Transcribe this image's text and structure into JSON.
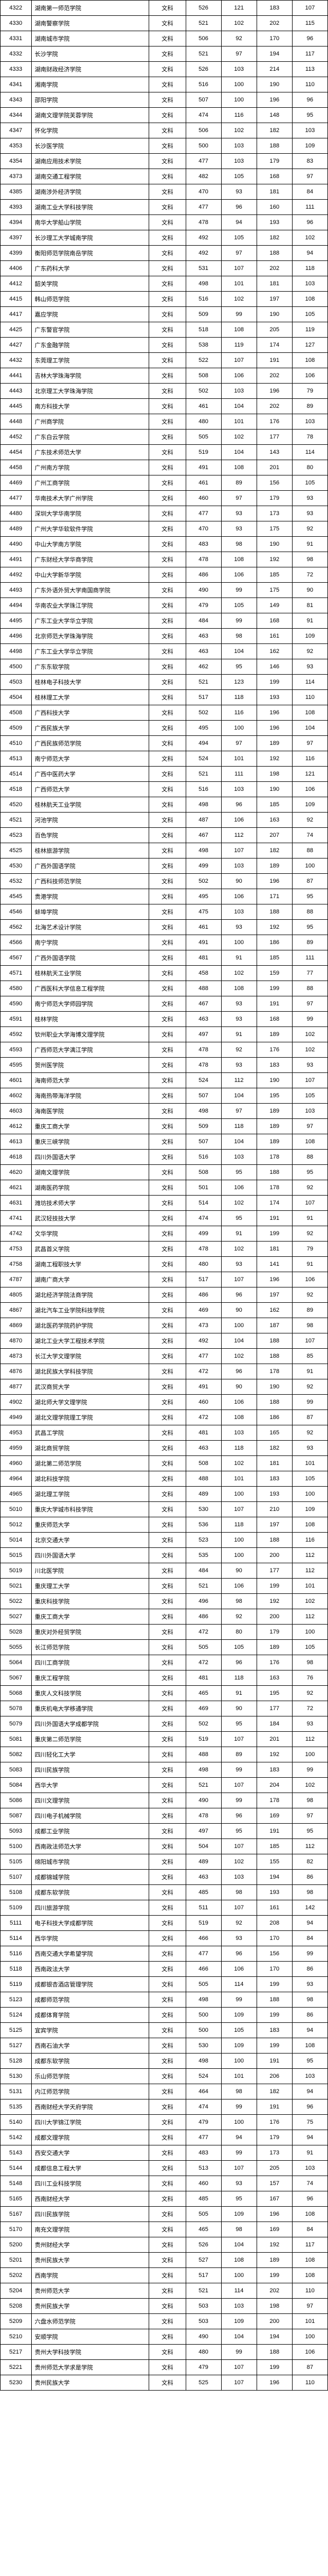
{
  "rows": [
    [
      "4322",
      "湖南第一师范学院",
      "文科",
      526,
      121,
      183,
      107
    ],
    [
      "4330",
      "湖南警察学院",
      "文科",
      521,
      102,
      202,
      115
    ],
    [
      "4331",
      "湖南城市学院",
      "文科",
      506,
      92,
      170,
      96
    ],
    [
      "4332",
      "长沙学院",
      "文科",
      521,
      97,
      194,
      117
    ],
    [
      "4333",
      "湖南财政经济学院",
      "文科",
      526,
      103,
      214,
      113
    ],
    [
      "4341",
      "湘南学院",
      "文科",
      516,
      100,
      190,
      110
    ],
    [
      "4343",
      "邵阳学院",
      "文科",
      507,
      100,
      196,
      96
    ],
    [
      "4344",
      "湖南文理学院芙蓉学院",
      "文科",
      474,
      116,
      148,
      95
    ],
    [
      "4347",
      "怀化学院",
      "文科",
      506,
      102,
      182,
      103
    ],
    [
      "4353",
      "长沙医学院",
      "文科",
      500,
      103,
      188,
      109
    ],
    [
      "4354",
      "湖南应用技术学院",
      "文科",
      477,
      103,
      179,
      83
    ],
    [
      "4373",
      "湖南交通工程学院",
      "文科",
      482,
      105,
      168,
      97
    ],
    [
      "4385",
      "湖南涉外经济学院",
      "文科",
      470,
      93,
      181,
      84
    ],
    [
      "4393",
      "湖南工业大学科技学院",
      "文科",
      477,
      96,
      160,
      111
    ],
    [
      "4394",
      "南华大学船山学院",
      "文科",
      478,
      94,
      193,
      96
    ],
    [
      "4397",
      "长沙理工大学城南学院",
      "文科",
      492,
      105,
      182,
      102
    ],
    [
      "4399",
      "衡阳师范学院南岳学院",
      "文科",
      492,
      97,
      188,
      94
    ],
    [
      "4406",
      "广东药科大学",
      "文科",
      531,
      107,
      202,
      118
    ],
    [
      "4412",
      "韶关学院",
      "文科",
      498,
      101,
      181,
      103
    ],
    [
      "4415",
      "韩山师范学院",
      "文科",
      516,
      102,
      197,
      108
    ],
    [
      "4417",
      "嘉应学院",
      "文科",
      509,
      99,
      190,
      105
    ],
    [
      "4425",
      "广东警官学院",
      "文科",
      518,
      108,
      205,
      119
    ],
    [
      "4427",
      "广东金融学院",
      "文科",
      538,
      119,
      174,
      127
    ],
    [
      "4432",
      "东莞理工学院",
      "文科",
      522,
      107,
      191,
      108
    ],
    [
      "4441",
      "吉林大学珠海学院",
      "文科",
      508,
      106,
      202,
      106
    ],
    [
      "4443",
      "北京理工大学珠海学院",
      "文科",
      502,
      103,
      196,
      79
    ],
    [
      "4445",
      "南方科技大学",
      "文科",
      461,
      104,
      202,
      89
    ],
    [
      "4448",
      "广州商学院",
      "文科",
      480,
      101,
      176,
      103
    ],
    [
      "4452",
      "广东白云学院",
      "文科",
      505,
      102,
      177,
      78
    ],
    [
      "4454",
      "广东技术师范大学",
      "文科",
      519,
      104,
      143,
      114
    ],
    [
      "4458",
      "广州南方学院",
      "文科",
      491,
      108,
      201,
      80
    ],
    [
      "4469",
      "广州工商学院",
      "文科",
      461,
      89,
      156,
      105
    ],
    [
      "4477",
      "华南技术大学广州学院",
      "文科",
      460,
      97,
      179,
      93
    ],
    [
      "4480",
      "深圳大学华南学院",
      "文科",
      477,
      93,
      173,
      93
    ],
    [
      "4489",
      "广州大学华软软件学院",
      "文科",
      470,
      93,
      175,
      92
    ],
    [
      "4490",
      "中山大学南方学院",
      "文科",
      483,
      98,
      190,
      91
    ],
    [
      "4491",
      "广东财经大学华商学院",
      "文科",
      478,
      108,
      192,
      98
    ],
    [
      "4492",
      "中山大学新华学院",
      "文科",
      486,
      106,
      185,
      72
    ],
    [
      "4493",
      "广东外语外贸大学南国商学院",
      "文科",
      490,
      99,
      175,
      90
    ],
    [
      "4494",
      "华南农业大学珠江学院",
      "文科",
      479,
      105,
      149,
      81
    ],
    [
      "4495",
      "广东工业大学华立学院",
      "文科",
      484,
      99,
      168,
      91
    ],
    [
      "4496",
      "北京师范大学珠海学院",
      "文科",
      463,
      98,
      161,
      109
    ],
    [
      "4498",
      "广东工业大学华立学院",
      "文科",
      463,
      104,
      162,
      92
    ],
    [
      "4500",
      "广东东软学院",
      "文科",
      462,
      95,
      146,
      93
    ],
    [
      "4503",
      "桂林电子科技大学",
      "文科",
      521,
      123,
      199,
      114
    ],
    [
      "4504",
      "桂林理工大学",
      "文科",
      517,
      118,
      193,
      110
    ],
    [
      "4508",
      "广西科技大学",
      "文科",
      502,
      116,
      196,
      108
    ],
    [
      "4509",
      "广西民族大学",
      "文科",
      495,
      100,
      196,
      104
    ],
    [
      "4510",
      "广西民族师范学院",
      "文科",
      494,
      97,
      189,
      97
    ],
    [
      "4513",
      "南宁师范大学",
      "文科",
      524,
      101,
      192,
      116
    ],
    [
      "4514",
      "广西中医药大学",
      "文科",
      521,
      111,
      198,
      121
    ],
    [
      "4518",
      "广西师范大学",
      "文科",
      516,
      103,
      190,
      106
    ],
    [
      "4520",
      "桂林航天工业学院",
      "文科",
      498,
      96,
      185,
      109
    ],
    [
      "4521",
      "河池学院",
      "文科",
      487,
      106,
      163,
      92
    ],
    [
      "4523",
      "百色学院",
      "文科",
      467,
      112,
      207,
      74
    ],
    [
      "4525",
      "桂林旅游学院",
      "文科",
      498,
      107,
      182,
      88
    ],
    [
      "4530",
      "广西外国语学院",
      "文科",
      499,
      103,
      189,
      100
    ],
    [
      "4532",
      "广西科技师范学院",
      "文科",
      502,
      90,
      196,
      87
    ],
    [
      "4545",
      "贵港学院",
      "文科",
      495,
      106,
      171,
      95
    ],
    [
      "4546",
      "蚌埠学院",
      "文科",
      475,
      103,
      188,
      88
    ],
    [
      "4562",
      "北海艺术设计学院",
      "文科",
      461,
      93,
      192,
      95
    ],
    [
      "4566",
      "南宁学院",
      "文科",
      491,
      100,
      186,
      89
    ],
    [
      "4567",
      "广西外国语学院",
      "文科",
      481,
      91,
      185,
      111
    ],
    [
      "4571",
      "桂林航天工业学院",
      "文科",
      458,
      102,
      159,
      77
    ],
    [
      "4580",
      "广西医科大学信息工程学院",
      "文科",
      488,
      108,
      199,
      88
    ],
    [
      "4590",
      "南宁师范大学师园学院",
      "文科",
      467,
      93,
      191,
      97
    ],
    [
      "4591",
      "桂林学院",
      "文科",
      463,
      93,
      168,
      99
    ],
    [
      "4592",
      "钦州职业大学海博文理学院",
      "文科",
      497,
      91,
      189,
      102
    ],
    [
      "4593",
      "广西师范大学漓江学院",
      "文科",
      478,
      92,
      176,
      102
    ],
    [
      "4595",
      "贺州医学院",
      "文科",
      478,
      93,
      183,
      93
    ],
    [
      "4601",
      "海南师范大学",
      "文科",
      524,
      112,
      190,
      107
    ],
    [
      "4602",
      "海南热带海洋学院",
      "文科",
      507,
      104,
      195,
      105
    ],
    [
      "4603",
      "海南医学院",
      "文科",
      498,
      97,
      189,
      103
    ],
    [
      "4612",
      "重庆工商大学",
      "文科",
      509,
      118,
      189,
      97
    ],
    [
      "4613",
      "重庆三峡学院",
      "文科",
      507,
      104,
      189,
      108
    ],
    [
      "4618",
      "四川外国语大学",
      "文科",
      516,
      103,
      178,
      88
    ],
    [
      "4620",
      "湖南文理学院",
      "文科",
      508,
      95,
      188,
      95
    ],
    [
      "4621",
      "湖南医药学院",
      "文科",
      501,
      106,
      178,
      92
    ],
    [
      "4631",
      "潍坊技术师大学",
      "文科",
      514,
      102,
      174,
      107
    ],
    [
      "4741",
      "武汉轻技技大学",
      "文科",
      474,
      95,
      191,
      91
    ],
    [
      "4742",
      "文华学院",
      "文科",
      499,
      91,
      199,
      92
    ],
    [
      "4753",
      "武昌首义学院",
      "文科",
      478,
      102,
      181,
      79
    ],
    [
      "4758",
      "湖南工程职技大学",
      "文科",
      480,
      93,
      141,
      91
    ],
    [
      "4787",
      "湖南广商大学",
      "文科",
      517,
      107,
      196,
      106
    ],
    [
      "4805",
      "湖北经济学院法商学院",
      "文科",
      486,
      96,
      197,
      92
    ],
    [
      "4867",
      "湖北汽车工业学院科技学院",
      "文科",
      469,
      90,
      162,
      89
    ],
    [
      "4869",
      "湖北医药学院药护学院",
      "文科",
      473,
      100,
      187,
      98
    ],
    [
      "4870",
      "湖北工业大学工程技术学院",
      "文科",
      492,
      104,
      188,
      107
    ],
    [
      "4873",
      "长江大学文理学院",
      "文科",
      477,
      102,
      188,
      85
    ],
    [
      "4876",
      "湖北民族大学科技学院",
      "文科",
      472,
      96,
      178,
      91
    ],
    [
      "4877",
      "武汉商贸大学",
      "文科",
      491,
      90,
      190,
      92
    ],
    [
      "4902",
      "湖北师大学文理学院",
      "文科",
      460,
      106,
      188,
      99
    ],
    [
      "4949",
      "湖北文理学院理工学院",
      "文科",
      472,
      108,
      186,
      87
    ],
    [
      "4953",
      "武昌工学院",
      "文科",
      481,
      103,
      165,
      92
    ],
    [
      "4959",
      "湖北商贸学院",
      "文科",
      463,
      118,
      182,
      93
    ],
    [
      "4960",
      "湖北第二师范学院",
      "文科",
      508,
      102,
      181,
      101
    ],
    [
      "4964",
      "湖北科技学院",
      "文科",
      488,
      101,
      183,
      105
    ],
    [
      "4965",
      "湖北理工学院",
      "文科",
      489,
      100,
      193,
      100
    ],
    [
      "5010",
      "重庆大学城市科技学院",
      "文科",
      530,
      107,
      210,
      109
    ],
    [
      "5012",
      "重庆师范大学",
      "文科",
      536,
      118,
      197,
      108
    ],
    [
      "5014",
      "北京交通大学",
      "文科",
      523,
      100,
      188,
      116
    ],
    [
      "5015",
      "四川外国语大学",
      "文科",
      535,
      100,
      200,
      112
    ],
    [
      "5019",
      "川北医学院",
      "文科",
      484,
      90,
      177,
      112
    ],
    [
      "5021",
      "重庆理工大学",
      "文科",
      521,
      106,
      199,
      101
    ],
    [
      "5022",
      "重庆科技学院",
      "文科",
      496,
      98,
      192,
      102
    ],
    [
      "5027",
      "重庆工商大学",
      "文科",
      486,
      92,
      200,
      112
    ],
    [
      "5028",
      "重庆对外经贸学院",
      "文科",
      472,
      80,
      179,
      100
    ],
    [
      "5055",
      "长江师范学院",
      "文科",
      505,
      105,
      189,
      105
    ],
    [
      "5064",
      "四川工商学院",
      "文科",
      472,
      96,
      176,
      98
    ],
    [
      "5067",
      "重庆工程学院",
      "文科",
      481,
      118,
      163,
      76
    ],
    [
      "5068",
      "重庆人文科技学院",
      "文科",
      465,
      91,
      195,
      92
    ],
    [
      "5078",
      "重庆机电大学移通学院",
      "文科",
      469,
      90,
      177,
      72
    ],
    [
      "5079",
      "四川外国语大学成都学院",
      "文科",
      502,
      95,
      184,
      93
    ],
    [
      "5081",
      "重庆第二师范学院",
      "文科",
      519,
      107,
      201,
      112
    ],
    [
      "5082",
      "四川轻化工大学",
      "文科",
      488,
      89,
      192,
      100
    ],
    [
      "5083",
      "四川民族学院",
      "文科",
      498,
      99,
      183,
      99
    ],
    [
      "5084",
      "西华大学",
      "文科",
      521,
      107,
      204,
      102
    ],
    [
      "5086",
      "四川文理学院",
      "文科",
      490,
      99,
      178,
      98
    ],
    [
      "5087",
      "四川电子机械学院",
      "文科",
      478,
      96,
      169,
      97
    ],
    [
      "5093",
      "成都工业学院",
      "文科",
      497,
      95,
      191,
      95
    ],
    [
      "5100",
      "西南政法师范大学",
      "文科",
      504,
      107,
      185,
      112
    ],
    [
      "5105",
      "绵阳城市学院",
      "文科",
      489,
      102,
      155,
      82
    ],
    [
      "5107",
      "成都锦城学院",
      "文科",
      463,
      103,
      194,
      86
    ],
    [
      "5108",
      "成都东软学院",
      "文科",
      485,
      98,
      193,
      98
    ],
    [
      "5109",
      "四川旅游学院",
      "文科",
      511,
      107,
      161,
      142
    ],
    [
      "5111",
      "电子科技大学成都学院",
      "文科",
      519,
      92,
      208,
      94
    ],
    [
      "5114",
      "西华学院",
      "文科",
      466,
      93,
      170,
      84
    ],
    [
      "5116",
      "西南交通大学希望学院",
      "文科",
      477,
      96,
      156,
      99
    ],
    [
      "5118",
      "西南政法大学",
      "文科",
      466,
      106,
      170,
      86
    ],
    [
      "5119",
      "成都银杏酒店管理学院",
      "文科",
      505,
      114,
      199,
      93
    ],
    [
      "5123",
      "成都师范学院",
      "文科",
      498,
      99,
      188,
      98
    ],
    [
      "5124",
      "成都体育学院",
      "文科",
      500,
      109,
      199,
      86
    ],
    [
      "5125",
      "宜宾学院",
      "文科",
      500,
      105,
      183,
      94
    ],
    [
      "5127",
      "西南石油大学",
      "文科",
      530,
      109,
      199,
      108
    ],
    [
      "5128",
      "成都东软学院",
      "文科",
      498,
      100,
      191,
      95
    ],
    [
      "5130",
      "乐山师范学院",
      "文科",
      524,
      101,
      206,
      103
    ],
    [
      "5131",
      "内江师范学院",
      "文科",
      464,
      98,
      182,
      94
    ],
    [
      "5135",
      "西南财经大学天府学院",
      "文科",
      474,
      99,
      191,
      96
    ],
    [
      "5140",
      "四川大学锦江学院",
      "文科",
      479,
      100,
      176,
      75
    ],
    [
      "5142",
      "成都文理学院",
      "文科",
      477,
      94,
      179,
      94
    ],
    [
      "5143",
      "西安交通大学",
      "文科",
      483,
      99,
      173,
      91
    ],
    [
      "5144",
      "成都信息工程大学",
      "文科",
      513,
      107,
      205,
      103
    ],
    [
      "5148",
      "四川工业科技学院",
      "文科",
      460,
      93,
      157,
      74
    ],
    [
      "5165",
      "西南财经大学",
      "文科",
      485,
      95,
      167,
      96
    ],
    [
      "5167",
      "四川民族学院",
      "文科",
      505,
      109,
      196,
      108
    ],
    [
      "5170",
      "南充文理学院",
      "文科",
      465,
      98,
      169,
      84
    ],
    [
      "5200",
      "贵州财经大学",
      "文科",
      526,
      104,
      192,
      117
    ],
    [
      "5201",
      "贵州民族大学",
      "文科",
      527,
      108,
      189,
      108
    ],
    [
      "5202",
      "西南学院",
      "文科",
      517,
      100,
      199,
      108
    ],
    [
      "5204",
      "贵州师范大学",
      "文科",
      521,
      114,
      202,
      110
    ],
    [
      "5208",
      "贵州民族大学",
      "文科",
      503,
      103,
      198,
      97
    ],
    [
      "5209",
      "六盘水师范学院",
      "文科",
      503,
      109,
      200,
      101
    ],
    [
      "5210",
      "安顺学院",
      "文科",
      490,
      104,
      194,
      100
    ],
    [
      "5217",
      "贵州大学科技学院",
      "文科",
      480,
      99,
      188,
      106
    ],
    [
      "5221",
      "贵州师范大学求是学院",
      "文科",
      479,
      107,
      199,
      87
    ],
    [
      "5230",
      "贵州民族大学",
      "文科",
      525,
      107,
      196,
      110
    ]
  ]
}
